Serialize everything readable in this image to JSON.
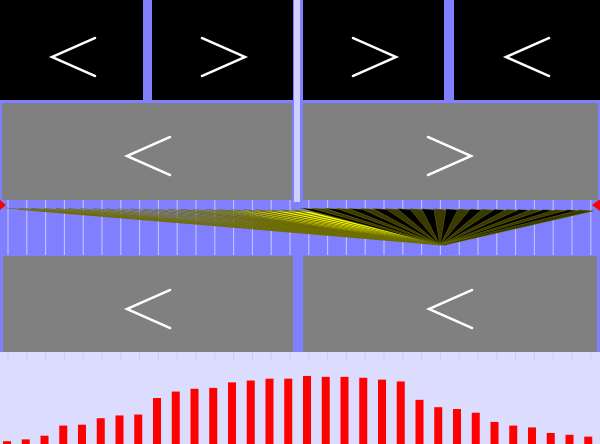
{
  "colors": {
    "background": "#8080ff",
    "black_panel": "#000000",
    "gray_panel": "#808080",
    "arrow": "#ffffff",
    "ribbon": "#ffff00",
    "ribbon_dark": "#000000",
    "marker": "#ff0000",
    "bars": "#ff0000",
    "bars_background": "#dcdcff"
  },
  "top_row": {
    "arrows": [
      {
        "direction": "left",
        "icon": "chevron-left-icon"
      },
      {
        "direction": "right",
        "icon": "chevron-right-icon"
      },
      {
        "direction": "right",
        "icon": "chevron-right-icon"
      },
      {
        "direction": "left",
        "icon": "chevron-left-icon"
      }
    ]
  },
  "middle_row": {
    "arrows": [
      {
        "direction": "left",
        "icon": "chevron-left-icon"
      },
      {
        "direction": "right",
        "icon": "chevron-right-icon"
      }
    ]
  },
  "bottom_row": {
    "arrows": [
      {
        "direction": "left",
        "icon": "chevron-left-icon"
      },
      {
        "direction": "left",
        "icon": "chevron-left-icon"
      }
    ]
  },
  "ribbon": {
    "markers": [
      "left-marker-icon",
      "right-marker-icon"
    ]
  },
  "bars": {
    "values": [
      3,
      5,
      9,
      20,
      21,
      28,
      31,
      32,
      50,
      57,
      60,
      61,
      67,
      69,
      71,
      71,
      74,
      73,
      73,
      72,
      70,
      68,
      48,
      40,
      38,
      34,
      24,
      20,
      18,
      12,
      10,
      8
    ]
  }
}
